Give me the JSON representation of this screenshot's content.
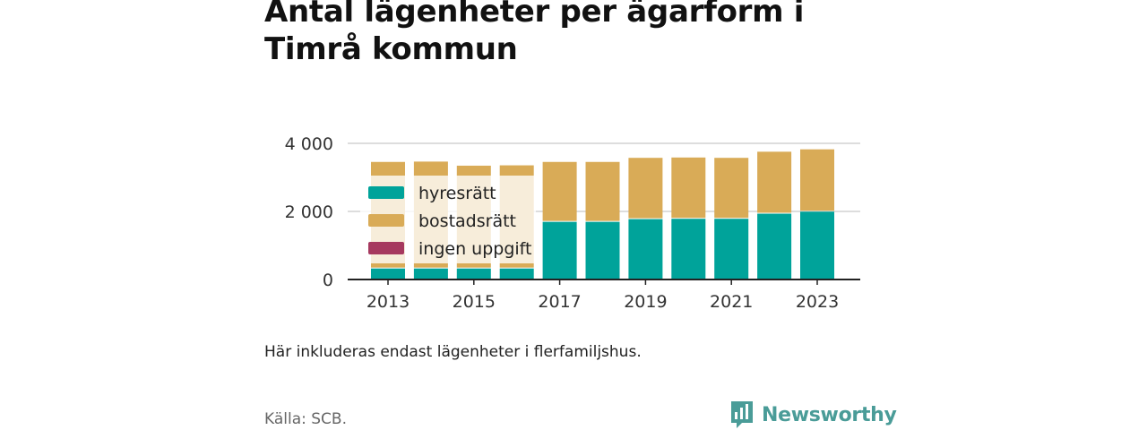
{
  "page": {
    "title": "Antal lägenheter per ägarform i Timrå kommun",
    "caption": "Här inkluderas endast lägenheter i flerfamiljshus.",
    "source": "Källa: SCB.",
    "brand": "Newsworthy",
    "logo_icon": "bar-chart-icon"
  },
  "colors": {
    "hyresratt": "#00a39a",
    "bostadsratt": "#d9ab57",
    "ingen_uppgift": "#a6395f",
    "gridline": "#dddddd",
    "axis": "#222222",
    "brand": "#4a9c98"
  },
  "chart_data": {
    "type": "bar",
    "stacked": true,
    "categories": [
      "2013",
      "2014",
      "2015",
      "2016",
      "2017",
      "2018",
      "2019",
      "2020",
      "2021",
      "2022",
      "2023"
    ],
    "x_tick_labels": [
      "2013",
      "2015",
      "2017",
      "2019",
      "2021",
      "2023"
    ],
    "series": [
      {
        "name": "hyresrätt",
        "values": [
          350,
          350,
          350,
          350,
          1720,
          1720,
          1800,
          1810,
          1810,
          1960,
          2020
        ]
      },
      {
        "name": "bostadsrätt",
        "values": [
          3130,
          3140,
          3020,
          3030,
          1760,
          1760,
          1800,
          1800,
          1790,
          1820,
          1830
        ]
      },
      {
        "name": "ingen uppgift",
        "values": [
          0,
          0,
          0,
          0,
          0,
          0,
          0,
          0,
          0,
          0,
          0
        ]
      }
    ],
    "y_ticks": [
      "0",
      "2 000",
      "4 000"
    ],
    "ylim": [
      0,
      4000
    ],
    "legend_position": "top-left",
    "grid": true,
    "xlabel": "",
    "ylabel": ""
  }
}
